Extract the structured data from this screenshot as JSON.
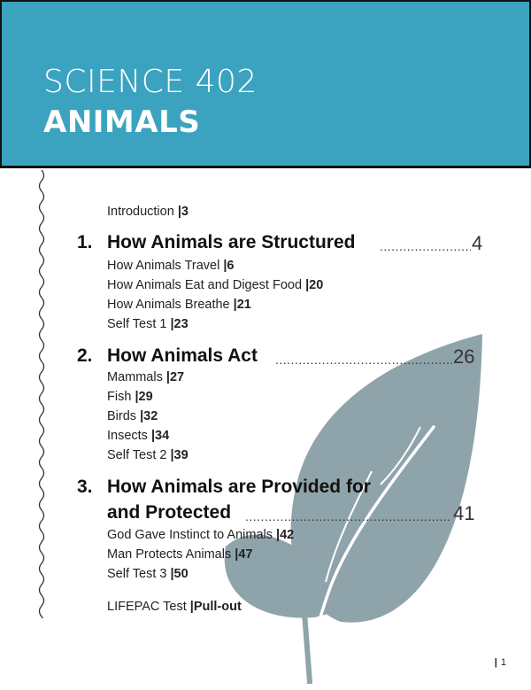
{
  "header": {
    "subject": "SCIENCE 402",
    "title": "ANIMALS",
    "background_color": "#3ba3c0"
  },
  "intro": {
    "label": "Introduction",
    "sep": "|",
    "page": "3"
  },
  "sections": [
    {
      "number": "1.",
      "heading": "How Animals are Structured",
      "page": "4",
      "items": [
        {
          "label": "How Animals Travel",
          "sep": "|",
          "page": "6"
        },
        {
          "label": "How Animals Eat and Digest Food",
          "sep": "|",
          "page": "20"
        },
        {
          "label": "How Animals Breathe",
          "sep": "|",
          "page": "21"
        },
        {
          "label": "Self Test 1",
          "sep": "|",
          "page": "23"
        }
      ]
    },
    {
      "number": "2.",
      "heading": "How Animals Act",
      "page": "26",
      "items": [
        {
          "label": "Mammals",
          "sep": "|",
          "page": "27"
        },
        {
          "label": "Fish",
          "sep": "|",
          "page": "29"
        },
        {
          "label": "Birds",
          "sep": "|",
          "page": "32"
        },
        {
          "label": "Insects",
          "sep": "|",
          "page": "34"
        },
        {
          "label": "Self Test 2",
          "sep": "|",
          "page": "39"
        }
      ]
    },
    {
      "number": "3.",
      "heading_line1": "How Animals are Provided for",
      "heading_line2": "and Protected",
      "page": "41",
      "items": [
        {
          "label": "God Gave Instinct to Animals",
          "sep": "|",
          "page": "42"
        },
        {
          "label": "Man Protects Animals",
          "sep": "|",
          "page": "47"
        },
        {
          "label": "Self Test 3",
          "sep": "|",
          "page": "50"
        }
      ]
    }
  ],
  "lifepac": {
    "label": "LIFEPAC Test",
    "sep": "|",
    "page": "Pull-out"
  },
  "footer": {
    "sep": "|",
    "page_number": "1"
  },
  "dot_leader": "...................................................................................",
  "leaf_color": "#8fa3aa"
}
